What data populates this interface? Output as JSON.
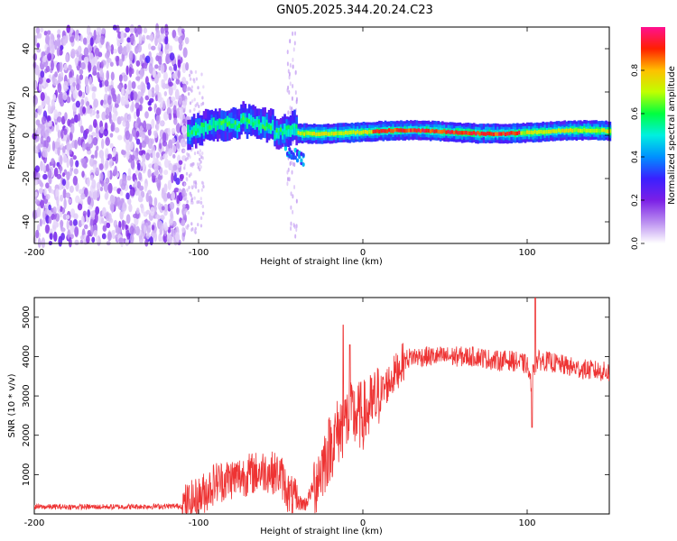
{
  "title": "GN05.2025.344.20.24.C23",
  "chart_data": [
    {
      "type": "heatmap",
      "name": "spectrogram",
      "xlabel": "Height of straight line (km)",
      "ylabel": "Frequency (Hz)",
      "xlim": [
        -200,
        150
      ],
      "ylim": [
        -50,
        50
      ],
      "xticks": [
        -200,
        -100,
        0,
        100
      ],
      "xtick_labels": [
        "-200",
        "-100",
        "0",
        "100"
      ],
      "yticks": [
        -40,
        -20,
        0,
        20,
        40
      ],
      "ytick_labels": [
        "-40",
        "-20",
        "0",
        "20",
        "40"
      ],
      "colorbar": {
        "label": "Normalized spectral amplitude",
        "range": [
          0,
          1
        ],
        "ticks": [
          0.0,
          0.2,
          0.4,
          0.6,
          0.8
        ],
        "tick_labels": [
          "0.0",
          "0.2",
          "0.4",
          "0.6",
          "0.8"
        ],
        "colormap": [
          "#ffffff",
          "#b98cf0",
          "#7b1fe6",
          "#3a20ff",
          "#0090ff",
          "#00f0e0",
          "#00ff40",
          "#c0ff00",
          "#ffc000",
          "#ff2000",
          "#ff1090"
        ]
      },
      "regions": [
        {
          "x_range": [
            -200,
            -107
          ],
          "description_value": "broadband noise, amplitude 0.05-0.25"
        },
        {
          "x_range": [
            -107,
            -40
          ],
          "center_hz": 3,
          "amplitude": 0.45
        },
        {
          "x_range": [
            -40,
            150
          ],
          "center_hz": 1.5,
          "amplitude": 0.8
        }
      ]
    },
    {
      "type": "line",
      "name": "snr",
      "xlabel": "Height of straight line (km)",
      "ylabel": "SNR (10 * v/v)",
      "xlim": [
        -200,
        150
      ],
      "ylim": [
        0,
        5500
      ],
      "xticks": [
        -200,
        -100,
        0,
        100
      ],
      "xtick_labels": [
        "-200",
        "-100",
        "0",
        "100"
      ],
      "yticks": [
        1000,
        2000,
        3000,
        4000,
        5000
      ],
      "ytick_labels": [
        "1000",
        "2000",
        "3000",
        "4000",
        "5000"
      ],
      "line_color": "#ee3333",
      "envelope": {
        "x": [
          -200,
          -150,
          -110,
          -100,
          -90,
          -80,
          -70,
          -60,
          -50,
          -45,
          -40,
          -35,
          -30,
          -25,
          -20,
          -15,
          -10,
          -5,
          0,
          5,
          10,
          15,
          20,
          25,
          30,
          40,
          50,
          60,
          70,
          80,
          90,
          100,
          102,
          104,
          106,
          110,
          120,
          130,
          140,
          150
        ],
        "y": [
          180,
          180,
          200,
          400,
          800,
          900,
          1000,
          1100,
          1000,
          500,
          300,
          250,
          700,
          1200,
          1700,
          2100,
          2400,
          2500,
          2500,
          2700,
          3000,
          3300,
          3600,
          3900,
          4000,
          4000,
          4000,
          4000,
          4000,
          3900,
          3900,
          3800,
          3300,
          3700,
          3900,
          3900,
          3800,
          3700,
          3650,
          3600
        ]
      },
      "spikes": [
        {
          "x": -12,
          "y": 4800
        },
        {
          "x": -8,
          "y": 4300
        },
        {
          "x": 103,
          "y": 2200
        },
        {
          "x": 105,
          "y": 5500
        }
      ]
    }
  ]
}
